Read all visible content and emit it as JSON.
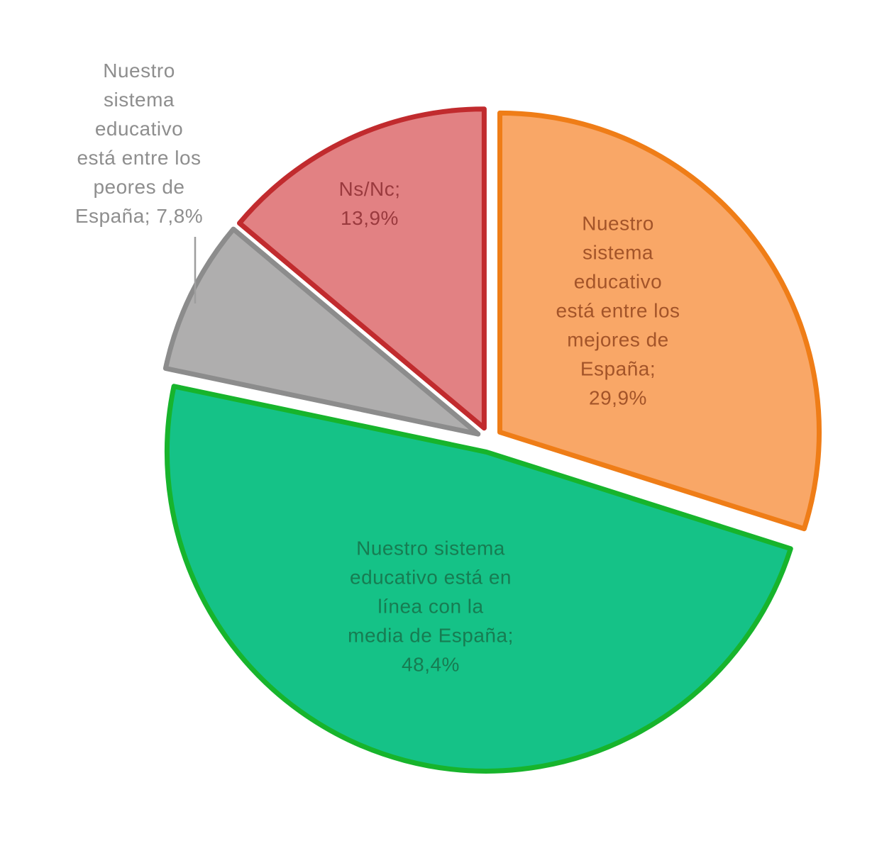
{
  "chart_data": {
    "type": "pie",
    "direction": "clockwise",
    "start_angle_deg": 0,
    "exploded": true,
    "legend": "none",
    "background": "#FFFFFF",
    "slices": [
      {
        "name": "Nuestro sistema educativo está entre los mejores de España",
        "value": 29.9,
        "value_label": "29,9%",
        "label": "Nuestro\nsistema\neducativo\nestá entre los\nmejores de\nEspaña;\n29,9%",
        "label_position": "inside",
        "fill": "#F9A767",
        "stroke": "#EF7D17",
        "label_color": "#A35429"
      },
      {
        "name": "Nuestro sistema educativo está en línea con la media de España",
        "value": 48.4,
        "value_label": "48,4%",
        "label": "Nuestro sistema\neducativo está en\nlínea con la\nmedia de España;\n48,4%",
        "label_position": "inside",
        "fill": "#15C287",
        "stroke": "#17B42C",
        "label_color": "#177C52"
      },
      {
        "name": "Nuestro sistema educativo está entre los peores de España",
        "value": 7.8,
        "value_label": "7,8%",
        "label": "Nuestro\nsistema\neducativo\nestá entre los\npeores de\nEspaña; 7,8%",
        "label_position": "outside",
        "fill": "#AFAEAE",
        "stroke": "#8C8C8C",
        "label_color": "#8E8E8E"
      },
      {
        "name": "Ns/Nc",
        "value": 13.9,
        "value_label": "13,9%",
        "label": "Ns/Nc;\n13,9%",
        "label_position": "inside",
        "fill": "#E28183",
        "stroke": "#C12B2E",
        "label_color": "#9A3A3E"
      }
    ],
    "leader_line_color": "#9E9E9E"
  }
}
